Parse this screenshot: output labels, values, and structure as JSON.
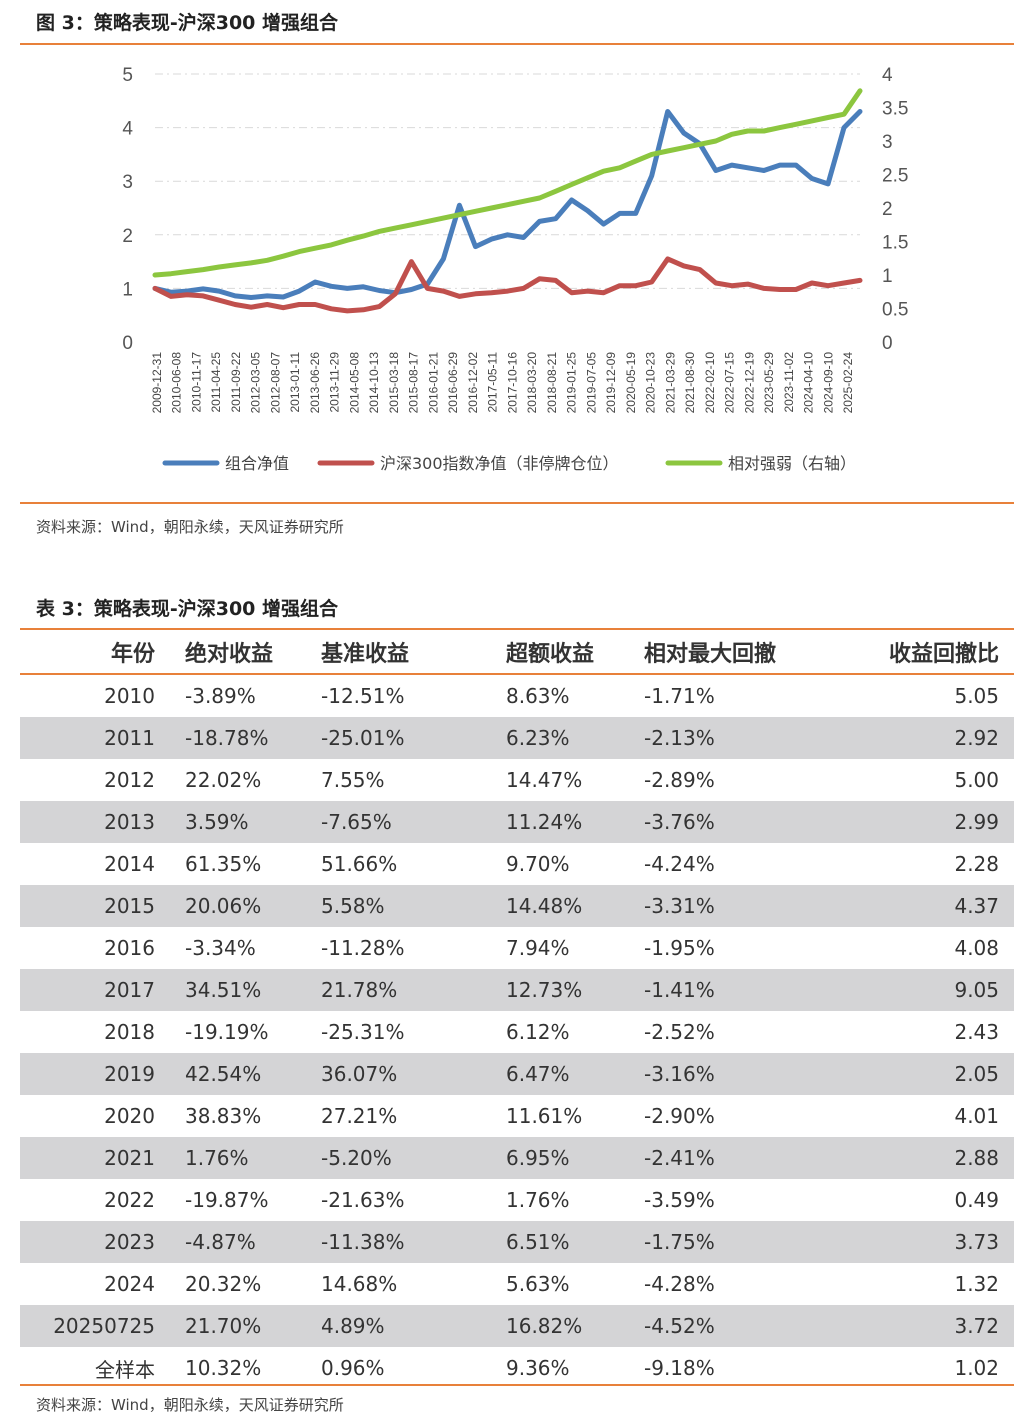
{
  "figure": {
    "title": "图 3：策略表现-沪深300 增强组合",
    "source": "资料来源：Wind，朝阳永续，天风证券研究所"
  },
  "chart_data": {
    "type": "line",
    "title": "",
    "y_left": {
      "ticks": [
        0,
        1,
        2,
        3,
        4,
        5
      ],
      "range": [
        0,
        5
      ]
    },
    "y_right": {
      "ticks": [
        "0",
        "0.5",
        "1",
        "1.5",
        "2",
        "2.5",
        "3",
        "3.5",
        "4"
      ],
      "range": [
        0,
        4
      ]
    },
    "x_ticks": [
      "2009-12-31",
      "2010-06-08",
      "2010-11-17",
      "2011-04-25",
      "2011-09-22",
      "2012-03-05",
      "2012-08-07",
      "2013-01-11",
      "2013-06-26",
      "2013-11-29",
      "2014-05-08",
      "2014-10-13",
      "2015-03-18",
      "2015-08-17",
      "2016-01-21",
      "2016-06-29",
      "2016-12-02",
      "2017-05-11",
      "2017-10-16",
      "2018-03-20",
      "2018-08-21",
      "2019-01-25",
      "2019-07-05",
      "2019-12-09",
      "2020-05-19",
      "2020-10-23",
      "2021-03-29",
      "2021-08-30",
      "2022-02-10",
      "2022-07-15",
      "2022-12-19",
      "2023-05-29",
      "2023-11-02",
      "2024-04-10",
      "2024-09-10",
      "2025-02-24"
    ],
    "grid": "horizontal dashed",
    "legend_position": "bottom",
    "series": [
      {
        "name": "组合净值",
        "axis": "left",
        "color": "#4a7ebb",
        "values": [
          1.0,
          0.93,
          0.95,
          0.99,
          0.95,
          0.86,
          0.83,
          0.86,
          0.84,
          0.95,
          1.12,
          1.04,
          1.0,
          1.03,
          0.96,
          0.92,
          0.98,
          1.08,
          1.55,
          2.55,
          1.78,
          1.92,
          2.0,
          1.95,
          2.25,
          2.3,
          2.65,
          2.45,
          2.2,
          2.4,
          2.4,
          3.1,
          4.3,
          3.9,
          3.7,
          3.2,
          3.3,
          3.25,
          3.2,
          3.3,
          3.3,
          3.05,
          2.95,
          4.0,
          4.3
        ]
      },
      {
        "name": "沪深300指数净值（非停牌仓位）",
        "axis": "left",
        "color": "#c0504d",
        "values": [
          1.0,
          0.85,
          0.88,
          0.86,
          0.78,
          0.7,
          0.65,
          0.7,
          0.64,
          0.7,
          0.7,
          0.62,
          0.58,
          0.6,
          0.66,
          0.9,
          1.5,
          1.0,
          0.95,
          0.85,
          0.9,
          0.92,
          0.95,
          1.0,
          1.18,
          1.15,
          0.92,
          0.95,
          0.92,
          1.05,
          1.05,
          1.12,
          1.55,
          1.42,
          1.35,
          1.1,
          1.05,
          1.08,
          1.0,
          0.98,
          0.98,
          1.1,
          1.05,
          1.1,
          1.15
        ]
      },
      {
        "name": "相对强弱（右轴）",
        "axis": "right",
        "color": "#8cc63f",
        "values": [
          1.0,
          1.02,
          1.05,
          1.08,
          1.12,
          1.15,
          1.18,
          1.22,
          1.28,
          1.35,
          1.4,
          1.45,
          1.52,
          1.58,
          1.65,
          1.7,
          1.75,
          1.8,
          1.85,
          1.9,
          1.95,
          2.0,
          2.05,
          2.1,
          2.15,
          2.25,
          2.35,
          2.45,
          2.55,
          2.6,
          2.7,
          2.8,
          2.85,
          2.9,
          2.95,
          3.0,
          3.1,
          3.15,
          3.15,
          3.2,
          3.25,
          3.3,
          3.35,
          3.4,
          3.75
        ]
      }
    ]
  },
  "table": {
    "title": "表 3：策略表现-沪深300 增强组合",
    "source": "资料来源：Wind，朝阳永续，天风证券研究所",
    "headers": [
      "年份",
      "绝对收益",
      "基准收益",
      "超额收益",
      "相对最大回撤",
      "收益回撤比"
    ],
    "rows": [
      [
        "2010",
        "-3.89%",
        "-12.51%",
        "8.63%",
        "-1.71%",
        "5.05"
      ],
      [
        "2011",
        "-18.78%",
        "-25.01%",
        "6.23%",
        "-2.13%",
        "2.92"
      ],
      [
        "2012",
        "22.02%",
        "7.55%",
        "14.47%",
        "-2.89%",
        "5.00"
      ],
      [
        "2013",
        "3.59%",
        "-7.65%",
        "11.24%",
        "-3.76%",
        "2.99"
      ],
      [
        "2014",
        "61.35%",
        "51.66%",
        "9.70%",
        "-4.24%",
        "2.28"
      ],
      [
        "2015",
        "20.06%",
        "5.58%",
        "14.48%",
        "-3.31%",
        "4.37"
      ],
      [
        "2016",
        "-3.34%",
        "-11.28%",
        "7.94%",
        "-1.95%",
        "4.08"
      ],
      [
        "2017",
        "34.51%",
        "21.78%",
        "12.73%",
        "-1.41%",
        "9.05"
      ],
      [
        "2018",
        "-19.19%",
        "-25.31%",
        "6.12%",
        "-2.52%",
        "2.43"
      ],
      [
        "2019",
        "42.54%",
        "36.07%",
        "6.47%",
        "-3.16%",
        "2.05"
      ],
      [
        "2020",
        "38.83%",
        "27.21%",
        "11.61%",
        "-2.90%",
        "4.01"
      ],
      [
        "2021",
        "1.76%",
        "-5.20%",
        "6.95%",
        "-2.41%",
        "2.88"
      ],
      [
        "2022",
        "-19.87%",
        "-21.63%",
        "1.76%",
        "-3.59%",
        "0.49"
      ],
      [
        "2023",
        "-4.87%",
        "-11.38%",
        "6.51%",
        "-1.75%",
        "3.73"
      ],
      [
        "2024",
        "20.32%",
        "14.68%",
        "5.63%",
        "-4.28%",
        "1.32"
      ],
      [
        "20250725",
        "21.70%",
        "4.89%",
        "16.82%",
        "-4.52%",
        "3.72"
      ],
      [
        "全样本",
        "10.32%",
        "0.96%",
        "9.36%",
        "-9.18%",
        "1.02"
      ]
    ]
  }
}
